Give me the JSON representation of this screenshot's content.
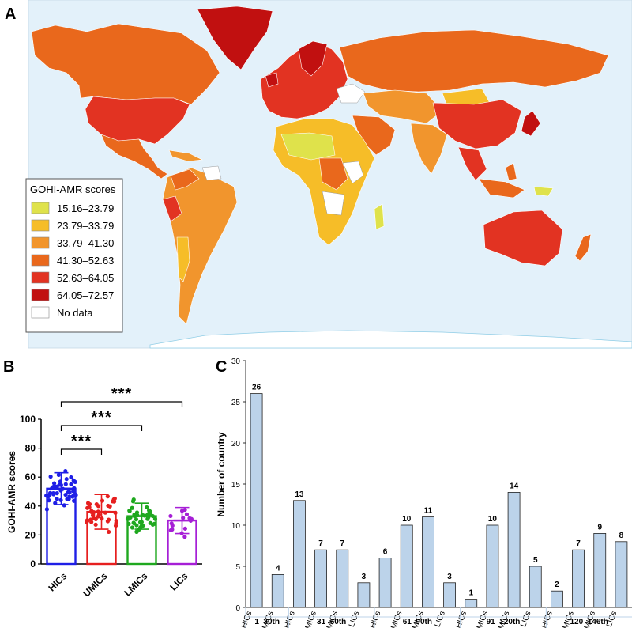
{
  "panels": {
    "a": "A",
    "b": "B",
    "c": "C"
  },
  "map_legend": {
    "title": "GOHI-AMR scores",
    "items": [
      {
        "label": "15.16–23.79",
        "color": "#dfe24b"
      },
      {
        "label": "23.79–33.79",
        "color": "#f6bd28"
      },
      {
        "label": "33.79–41.30",
        "color": "#f1952d"
      },
      {
        "label": "41.30–52.63",
        "color": "#e9681c"
      },
      {
        "label": "52.63–64.05",
        "color": "#e23322"
      },
      {
        "label": "64.05–72.57",
        "color": "#c11010"
      },
      {
        "label": "No data",
        "color": "#ffffff"
      }
    ]
  },
  "chart_data": [
    {
      "type": "bar",
      "panel": "B",
      "title": "",
      "xlabel": "",
      "ylabel": "GOHI-AMR scores",
      "ylim": [
        0,
        100
      ],
      "yticks": [
        0,
        20,
        40,
        60,
        80,
        100
      ],
      "categories": [
        "HICs",
        "UMICs",
        "LMICs",
        "LICs"
      ],
      "values": [
        52,
        36,
        33,
        30
      ],
      "error_sd": [
        11,
        12,
        9,
        9
      ],
      "colors": [
        "#1f1fe6",
        "#e61f1f",
        "#1fa81f",
        "#a61fd6"
      ],
      "significance": [
        {
          "from": "HICs",
          "to": "UMICs",
          "label": "***"
        },
        {
          "from": "HICs",
          "to": "LMICs",
          "label": "***"
        },
        {
          "from": "HICs",
          "to": "LICs",
          "label": "***"
        }
      ]
    },
    {
      "type": "bar",
      "panel": "C",
      "title": "",
      "xlabel": "",
      "ylabel": "Number of country",
      "ylim": [
        0,
        30
      ],
      "yticks": [
        0,
        5,
        10,
        15,
        20,
        25,
        30
      ],
      "categories": [
        "HICs",
        "UMICs",
        "HICs",
        "UMICs",
        "LMICs",
        "LICs",
        "HICs",
        "UMICs",
        "LMICs",
        "LICs",
        "HICs",
        "UMICs",
        "LMICs",
        "LICs",
        "HICs",
        "UMICs",
        "LMICs",
        "LICs"
      ],
      "values": [
        26,
        4,
        13,
        7,
        7,
        3,
        6,
        10,
        11,
        3,
        1,
        10,
        14,
        5,
        2,
        7,
        9,
        8
      ],
      "groups": [
        {
          "label": "1–30th",
          "count": 2
        },
        {
          "label": "31–60th",
          "count": 4
        },
        {
          "label": "61–90th",
          "count": 4
        },
        {
          "label": "91–120th",
          "count": 4
        },
        {
          "label": "120–146th",
          "count": 4
        }
      ],
      "bar_color": "#bcd3ea"
    }
  ]
}
